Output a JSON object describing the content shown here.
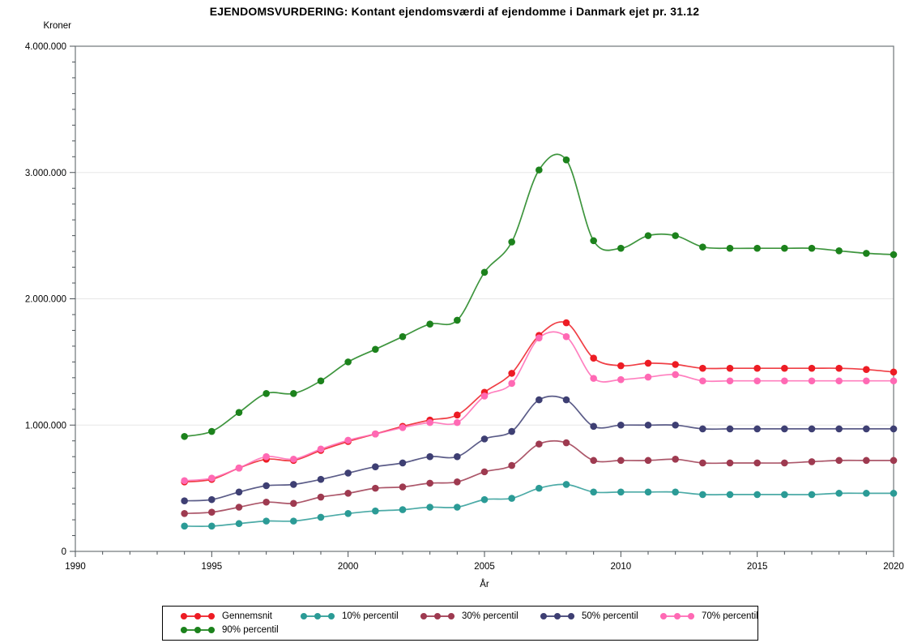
{
  "page": {
    "title": "EJENDOMSVURDERING: Kontant ejendomsværdi af ejendomme i Danmark ejet pr. 31.12"
  },
  "chart_data": {
    "type": "line",
    "title": "EJENDOMSVURDERING: Kontant ejendomsværdi af ejendomme i Danmark ejet pr. 31.12",
    "ylabel": "Kroner",
    "xlabel": "År",
    "x": [
      1994,
      1995,
      1996,
      1997,
      1998,
      1999,
      2000,
      2001,
      2002,
      2003,
      2004,
      2005,
      2006,
      2007,
      2008,
      2009,
      2010,
      2011,
      2012,
      2013,
      2014,
      2015,
      2016,
      2017,
      2018,
      2019,
      2020
    ],
    "xlim": [
      1990,
      2020
    ],
    "ylim": [
      0,
      4000000
    ],
    "xticks": [
      1990,
      1995,
      2000,
      2005,
      2010,
      2015,
      2020
    ],
    "xtick_labels": [
      "1990",
      "1995",
      "2000",
      "2005",
      "2010",
      "2015",
      "2020"
    ],
    "x_minor_step": 1,
    "yticks": [
      0,
      1000000,
      2000000,
      3000000,
      4000000
    ],
    "ytick_labels": [
      "0",
      "1.000.000",
      "2.000.000",
      "3.000.000",
      "4.000.000"
    ],
    "y_minor_step": 125000,
    "grid": "horizontal-major",
    "legend_position": "bottom",
    "marker": "filled-circle",
    "colors": {
      "grid": "#e7e7e7",
      "frame": "#6e7479",
      "tick": "#4a5156",
      "text": "#000000"
    },
    "series": [
      {
        "name": "Gennemsnit",
        "color": "#ED1C24",
        "values": [
          550000,
          570000,
          660000,
          730000,
          720000,
          800000,
          870000,
          930000,
          990000,
          1040000,
          1080000,
          1260000,
          1410000,
          1710000,
          1810000,
          1530000,
          1470000,
          1490000,
          1480000,
          1450000,
          1450000,
          1450000,
          1450000,
          1450000,
          1450000,
          1440000,
          1420000
        ]
      },
      {
        "name": "10% percentil",
        "color": "#2B9B96",
        "values": [
          200000,
          200000,
          220000,
          240000,
          240000,
          270000,
          300000,
          320000,
          330000,
          350000,
          350000,
          410000,
          420000,
          500000,
          530000,
          470000,
          470000,
          470000,
          470000,
          450000,
          450000,
          450000,
          450000,
          450000,
          460000,
          460000,
          460000
        ]
      },
      {
        "name": "30% percentil",
        "color": "#9E3A50",
        "values": [
          300000,
          310000,
          350000,
          390000,
          380000,
          430000,
          460000,
          500000,
          510000,
          540000,
          550000,
          630000,
          680000,
          850000,
          860000,
          720000,
          720000,
          720000,
          730000,
          700000,
          700000,
          700000,
          700000,
          710000,
          720000,
          720000,
          720000
        ]
      },
      {
        "name": "50% percentil",
        "color": "#3E3F73",
        "values": [
          400000,
          410000,
          470000,
          520000,
          530000,
          570000,
          620000,
          670000,
          700000,
          750000,
          750000,
          890000,
          950000,
          1200000,
          1200000,
          990000,
          1000000,
          1000000,
          1000000,
          970000,
          970000,
          970000,
          970000,
          970000,
          970000,
          970000,
          970000
        ]
      },
      {
        "name": "70% percentil",
        "color": "#FF69B4",
        "values": [
          560000,
          580000,
          660000,
          750000,
          730000,
          810000,
          880000,
          930000,
          980000,
          1020000,
          1020000,
          1230000,
          1330000,
          1690000,
          1700000,
          1370000,
          1360000,
          1380000,
          1400000,
          1350000,
          1350000,
          1350000,
          1350000,
          1350000,
          1350000,
          1350000,
          1350000
        ]
      },
      {
        "name": "90% percentil",
        "color": "#1C821C",
        "values": [
          910000,
          950000,
          1100000,
          1250000,
          1250000,
          1350000,
          1500000,
          1600000,
          1700000,
          1800000,
          1830000,
          2210000,
          2450000,
          3020000,
          3100000,
          2460000,
          2400000,
          2500000,
          2500000,
          2410000,
          2400000,
          2400000,
          2400000,
          2400000,
          2380000,
          2360000,
          2350000
        ]
      }
    ]
  }
}
